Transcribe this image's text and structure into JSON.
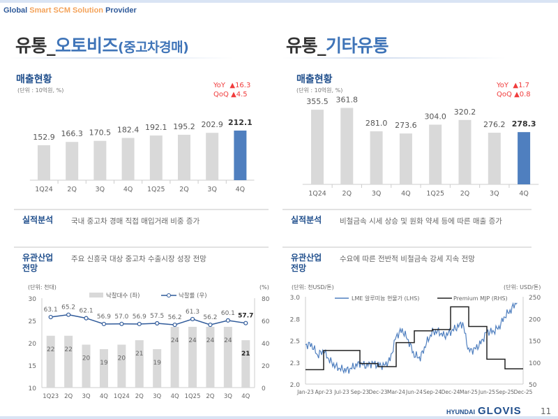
{
  "header": {
    "tag_1": "Global",
    "tag_2": "Smart SCM Solution",
    "tag_3": "Provider"
  },
  "left": {
    "title_prefix": "유통_",
    "title_main": "오토비즈",
    "title_sub": "(중고차경매)",
    "sales_title": "매출현황",
    "unit": "(단위 : 10억원, %)",
    "yoy_label": "YoY",
    "yoy_value": "▲16.3",
    "qoq_label": "QoQ",
    "qoq_value": "▲4.5",
    "perf_label": "실적분석",
    "perf_text": "국내 중고차 경매 직접 매입거래 비중 증가",
    "outlook_label_1": "유관산업",
    "outlook_label_2": "전망",
    "outlook_text": "주요 신흥국 대상 중고차 수출시장 성장 전망"
  },
  "right": {
    "title_prefix": "유통_",
    "title_main": "기타유통",
    "sales_title": "매출현황",
    "unit": "(단위 : 10억원, %)",
    "yoy_label": "YoY",
    "yoy_value": "▲1.7",
    "qoq_label": "QoQ",
    "qoq_value": "▲0.8",
    "perf_label": "실적분석",
    "perf_text": "비철금속 시세 상승 및 원화 약세 등에 따른 매출 증가",
    "outlook_label_1": "유관산업",
    "outlook_label_2": "전망",
    "outlook_text": "수요에 따른 전반적 비철금속 강세 지속 전망"
  },
  "footer": {
    "brand_small": "HYUNDAI",
    "brand": "GLOVIS",
    "page": "11"
  },
  "colors": {
    "highlight": "#4f7fbf",
    "bar": "#d9d9d9",
    "line": "#2f5a9a",
    "black": "#222222",
    "accent_red": "#f03c3c"
  },
  "chart_data": [
    {
      "type": "bar",
      "categories": [
        "1Q24",
        "2Q",
        "3Q",
        "4Q",
        "1Q25",
        "2Q",
        "3Q",
        "4Q"
      ],
      "values": [
        152.9,
        166.3,
        170.5,
        182.4,
        192.1,
        195.2,
        202.9,
        212.1
      ],
      "highlight_last": true
    },
    {
      "type": "bar",
      "categories": [
        "1Q24",
        "2Q",
        "3Q",
        "4Q",
        "1Q25",
        "2Q",
        "3Q",
        "4Q"
      ],
      "values": [
        355.5,
        361.8,
        281.0,
        273.6,
        304.0,
        320.2,
        276.2,
        278.3
      ],
      "highlight_last": true
    },
    {
      "type": "bar+line",
      "unit_left": "(단위: 천대)",
      "unit_right": "(%)",
      "categories": [
        "1Q23",
        "2Q",
        "3Q",
        "4Q",
        "1Q24",
        "2Q",
        "3Q",
        "4Q",
        "1Q25",
        "2Q",
        "3Q",
        "4Q"
      ],
      "series": [
        {
          "name": "낙찰대수 (좌)",
          "type": "bar",
          "axis": "left",
          "values": [
            22,
            22,
            20,
            19,
            20,
            21,
            19,
            24,
            24,
            24,
            24,
            21
          ]
        },
        {
          "name": "낙찰률 (우)",
          "type": "line",
          "axis": "right",
          "values": [
            63.1,
            65.2,
            62.1,
            56.9,
            57.0,
            56.9,
            57.5,
            56.2,
            61.3,
            56.2,
            60.1,
            57.7
          ]
        }
      ],
      "ylim_left": [
        10,
        30
      ],
      "yticks_left": [
        "30",
        "25",
        "20",
        "15",
        "10"
      ],
      "ylim_right": [
        0,
        80
      ],
      "yticks_right": [
        "80",
        "60",
        "40",
        "20",
        "0"
      ],
      "legend": "top"
    },
    {
      "type": "line",
      "unit_left": "(단위: 천USD/톤)",
      "unit_right": "(단위: USD/톤)",
      "xticks": [
        "Jan-23",
        "Apr-23",
        "Jul-23",
        "Sep-23",
        "Dec-23",
        "Mar-24",
        "Jun-24",
        "Sep-24",
        "Dec-24",
        "Mar-25",
        "Jun-25",
        "Sep-25",
        "Dec-25"
      ],
      "ylim_left": [
        2.0,
        3.0
      ],
      "yticks_left": [
        "3.0",
        "2.8",
        "2.5",
        "2.3",
        "2.0"
      ],
      "ylim_right": [
        50,
        250
      ],
      "yticks_right": [
        "250",
        "200",
        "150",
        "100",
        "50"
      ],
      "legend": "top",
      "series": [
        {
          "name": "LME 알루미늄 현물가 (LHS)",
          "axis": "left",
          "x": [
            "2023-01",
            "2023-02",
            "2023-03",
            "2023-04",
            "2023-05",
            "2023-06",
            "2023-07",
            "2023-08",
            "2023-09",
            "2023-10",
            "2023-11",
            "2023-12",
            "2024-01",
            "2024-02",
            "2024-03",
            "2024-04",
            "2024-05",
            "2024-06",
            "2024-07",
            "2024-08",
            "2024-09",
            "2024-10",
            "2024-11",
            "2024-12",
            "2025-01",
            "2025-02",
            "2025-03",
            "2025-04",
            "2025-05",
            "2025-06",
            "2025-07",
            "2025-08",
            "2025-09",
            "2025-10",
            "2025-11",
            "2025-12"
          ],
          "values": [
            2.45,
            2.45,
            2.33,
            2.38,
            2.27,
            2.2,
            2.17,
            2.16,
            2.2,
            2.24,
            2.21,
            2.24,
            2.22,
            2.21,
            2.28,
            2.55,
            2.62,
            2.5,
            2.33,
            2.3,
            2.47,
            2.6,
            2.6,
            2.55,
            2.6,
            2.65,
            2.7,
            2.38,
            2.4,
            2.47,
            2.6,
            2.6,
            2.65,
            2.78,
            2.85,
            2.95
          ]
        },
        {
          "name": "Premium MJP (RHS)",
          "axis": "right",
          "type": "step",
          "x": [
            "2023-01",
            "2023-04",
            "2023-10",
            "2024-01",
            "2024-04",
            "2024-07",
            "2024-10",
            "2025-01",
            "2025-04",
            "2025-07",
            "2025-10"
          ],
          "values": [
            83,
            127,
            97,
            90,
            145,
            172,
            175,
            227,
            182,
            107,
            85
          ]
        }
      ]
    }
  ]
}
